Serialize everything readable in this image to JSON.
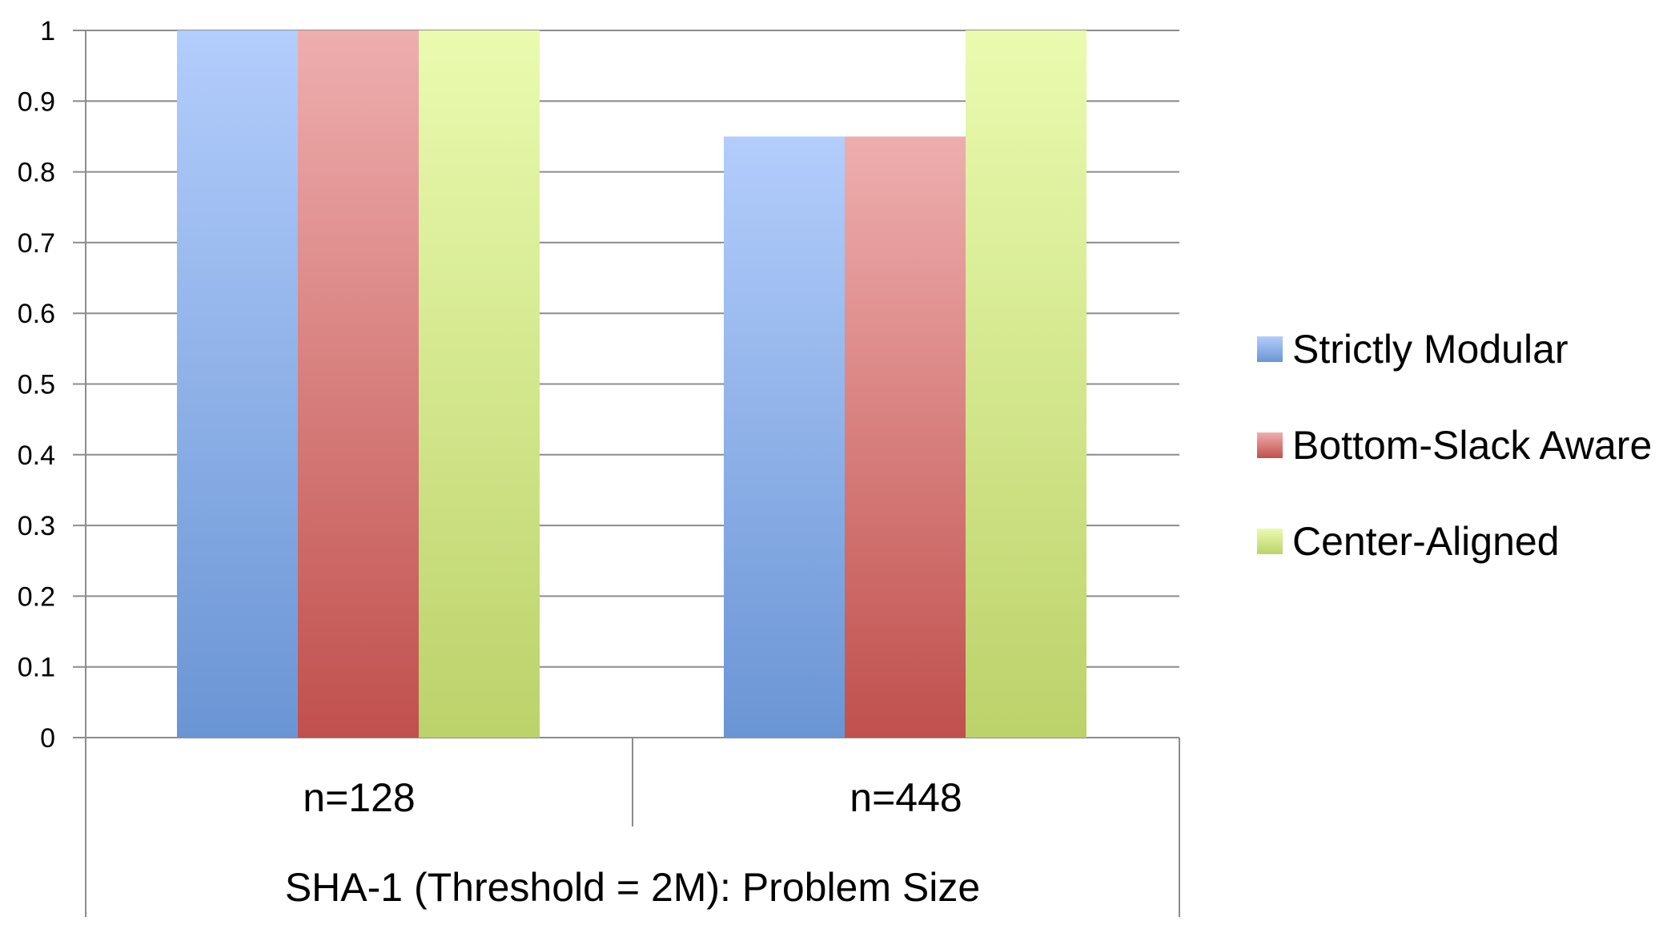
{
  "chart_data": {
    "type": "bar",
    "categories": [
      "n=128",
      "n=448"
    ],
    "series": [
      {
        "name": "Strictly Modular",
        "values": [
          1.0,
          0.85
        ],
        "color_top": "#b3cdfc",
        "color_bottom": "#6a95d4"
      },
      {
        "name": "Bottom-Slack Aware",
        "values": [
          1.0,
          0.85
        ],
        "color_top": "#eeaeae",
        "color_bottom": "#c0504d"
      },
      {
        "name": "Center-Aligned",
        "values": [
          1.0,
          1.0
        ],
        "color_top": "#eafbb0",
        "color_bottom": "#bcd26a"
      }
    ],
    "y_ticks": [
      "0",
      "0.1",
      "0.2",
      "0.3",
      "0.4",
      "0.5",
      "0.6",
      "0.7",
      "0.8",
      "0.9",
      "1"
    ],
    "ylim": [
      0,
      1
    ],
    "xlabel": "SHA-1 (Threshold = 2M): Problem Size",
    "ylabel": "",
    "title": "",
    "grid": true,
    "legend_position": "right"
  }
}
